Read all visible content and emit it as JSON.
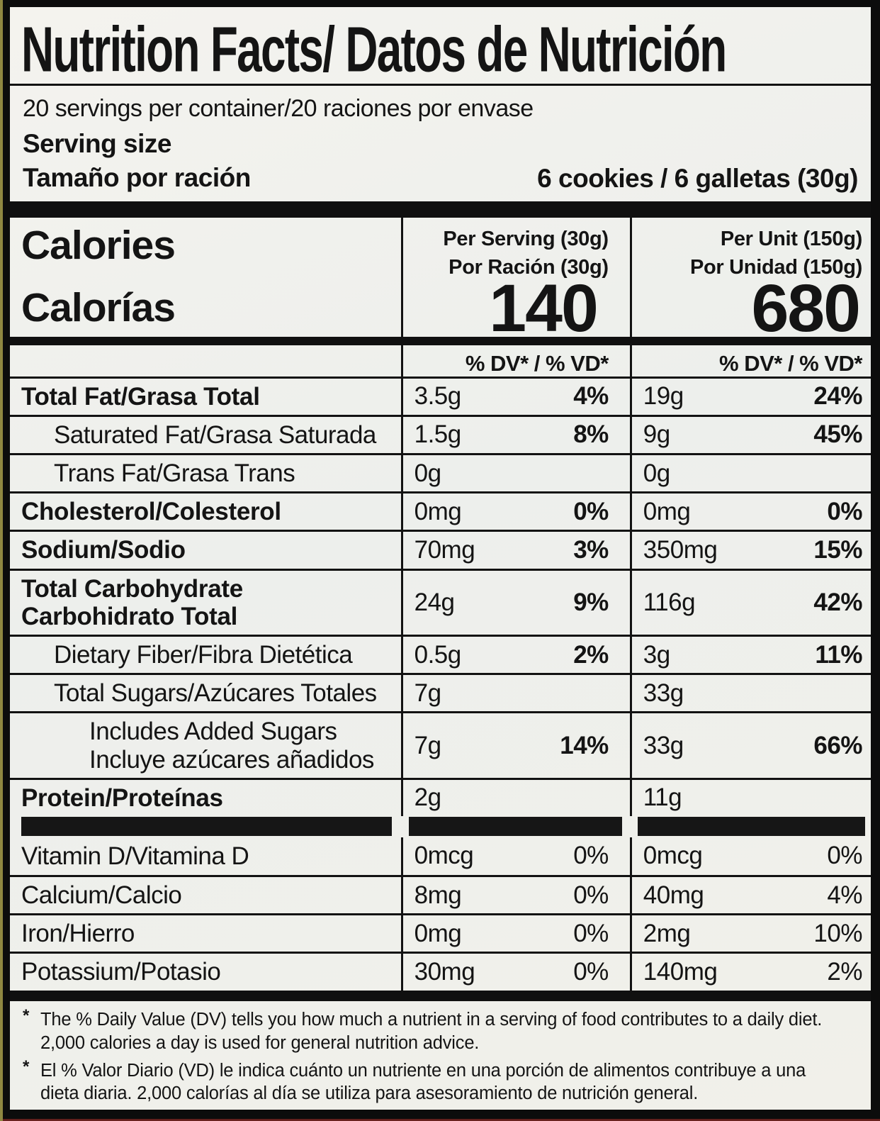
{
  "label": {
    "title": "Nutrition Facts/ Datos de Nutrición",
    "servings_per_container": "20 servings per container/20 raciones por envase",
    "serving_size": {
      "label_en": "Serving size",
      "label_es": "Tamaño por ración",
      "value": "6 cookies / 6 galletas (30g)"
    },
    "calories": {
      "label_en": "Calories",
      "label_es": "Calorías",
      "per_serving": {
        "header_en": "Per Serving (30g)",
        "header_es": "Por Ración (30g)",
        "value": "140"
      },
      "per_unit": {
        "header_en": "Per Unit (150g)",
        "header_es": "Por Unidad (150g)",
        "value": "680"
      }
    },
    "dv_header": "% DV* / % VD*",
    "nutrients": [
      {
        "label": "Total Fat/Grasa Total",
        "label2": "",
        "indent": 0,
        "bold": true,
        "serving": {
          "amount": "3.5g",
          "dv": "4%"
        },
        "unit": {
          "amount": "19g",
          "dv": "24%"
        }
      },
      {
        "label": "Saturated Fat/Grasa Saturada",
        "label2": "",
        "indent": 1,
        "bold": false,
        "serving": {
          "amount": "1.5g",
          "dv": "8%"
        },
        "unit": {
          "amount": "9g",
          "dv": "45%"
        }
      },
      {
        "label": "Trans Fat/Grasa Trans",
        "label2": "",
        "indent": 1,
        "bold": false,
        "serving": {
          "amount": "0g",
          "dv": ""
        },
        "unit": {
          "amount": "0g",
          "dv": ""
        }
      },
      {
        "label": "Cholesterol/Colesterol",
        "label2": "",
        "indent": 0,
        "bold": true,
        "serving": {
          "amount": "0mg",
          "dv": "0%"
        },
        "unit": {
          "amount": "0mg",
          "dv": "0%"
        }
      },
      {
        "label": "Sodium/Sodio",
        "label2": "",
        "indent": 0,
        "bold": true,
        "serving": {
          "amount": "70mg",
          "dv": "3%"
        },
        "unit": {
          "amount": "350mg",
          "dv": "15%"
        }
      },
      {
        "label": "Total Carbohydrate",
        "label2": "Carbohidrato Total",
        "indent": 0,
        "bold": true,
        "serving": {
          "amount": "24g",
          "dv": "9%"
        },
        "unit": {
          "amount": "116g",
          "dv": "42%"
        }
      },
      {
        "label": "Dietary Fiber/Fibra Dietética",
        "label2": "",
        "indent": 1,
        "bold": false,
        "serving": {
          "amount": "0.5g",
          "dv": "2%"
        },
        "unit": {
          "amount": "3g",
          "dv": "11%"
        }
      },
      {
        "label": "Total Sugars/Azúcares Totales",
        "label2": "",
        "indent": 1,
        "bold": false,
        "serving": {
          "amount": "7g",
          "dv": ""
        },
        "unit": {
          "amount": "33g",
          "dv": ""
        }
      },
      {
        "label": "Includes Added Sugars",
        "label2": "Incluye azúcares añadidos",
        "indent": 2,
        "bold": false,
        "serving": {
          "amount": "7g",
          "dv": "14%"
        },
        "unit": {
          "amount": "33g",
          "dv": "66%"
        }
      },
      {
        "label": "Protein/Proteínas",
        "label2": "",
        "indent": 0,
        "bold": true,
        "serving": {
          "amount": "2g",
          "dv": ""
        },
        "unit": {
          "amount": "11g",
          "dv": ""
        }
      }
    ],
    "vitamins": [
      {
        "label": "Vitamin D/Vitamina D",
        "label2": "",
        "indent": 0,
        "bold": false,
        "serving": {
          "amount": "0mcg",
          "dv": "0%"
        },
        "unit": {
          "amount": "0mcg",
          "dv": "0%"
        }
      },
      {
        "label": "Calcium/Calcio",
        "label2": "",
        "indent": 0,
        "bold": false,
        "serving": {
          "amount": "8mg",
          "dv": "0%"
        },
        "unit": {
          "amount": "40mg",
          "dv": "4%"
        }
      },
      {
        "label": "Iron/Hierro",
        "label2": "",
        "indent": 0,
        "bold": false,
        "serving": {
          "amount": "0mg",
          "dv": "0%"
        },
        "unit": {
          "amount": "2mg",
          "dv": "10%"
        }
      },
      {
        "label": "Potassium/Potasio",
        "label2": "",
        "indent": 0,
        "bold": false,
        "serving": {
          "amount": "30mg",
          "dv": "0%"
        },
        "unit": {
          "amount": "140mg",
          "dv": "2%"
        }
      }
    ],
    "footnotes": [
      {
        "marker": "*",
        "line1": "The % Daily Value (DV) tells you how much a nutrient in a serving of food contributes to a daily diet.",
        "line2": "2,000 calories  a day is used for  general nutrition advice."
      },
      {
        "marker": "*",
        "line1": "El % Valor Diario (VD) le indica cuánto un nutriente en una porción de alimentos contribuye a una",
        "line2": "dieta diaria. 2,000 calorías al día se utiliza para asesoramiento de nutrición general."
      }
    ]
  }
}
